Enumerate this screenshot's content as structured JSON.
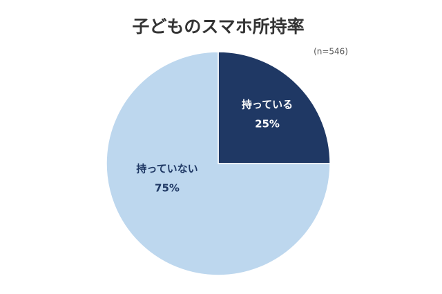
{
  "chart_data": {
    "type": "pie",
    "title": "子どものスマホ所持率",
    "subtitle": "(n=546)",
    "categories": [
      "持っている",
      "持っていない"
    ],
    "values": [
      25,
      75
    ],
    "value_labels": [
      "25%",
      "75%"
    ],
    "colors": [
      "#1f3864",
      "#bdd7ee"
    ],
    "label_colors": [
      "#ffffff",
      "#1f3864"
    ]
  }
}
